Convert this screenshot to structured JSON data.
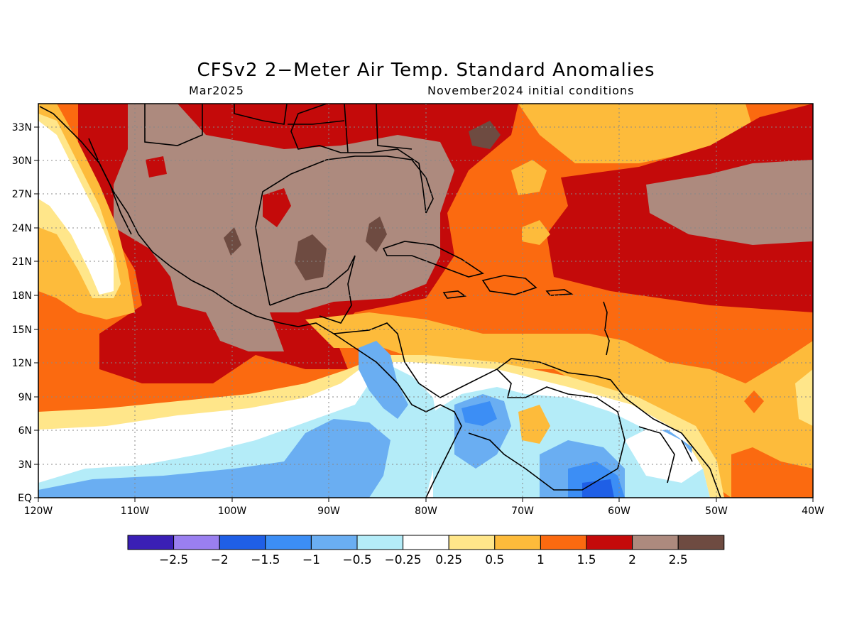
{
  "title": "CFSv2 2−Meter Air Temp. Standard Anomalies",
  "valid_month": "Mar2025",
  "init_conditions": "November2024 initial conditions",
  "lat_labels": [
    "33N",
    "30N",
    "27N",
    "24N",
    "21N",
    "18N",
    "15N",
    "12N",
    "9N",
    "6N",
    "3N",
    "EQ"
  ],
  "lon_labels": [
    "120W",
    "110W",
    "100W",
    "90W",
    "80W",
    "70W",
    "60W",
    "50W",
    "40W"
  ],
  "legend": {
    "colors": [
      "#3a1fb5",
      "#9a7ff0",
      "#1f5fe6",
      "#3c8ef5",
      "#6aaef2",
      "#b4ecf8",
      "#ffffff",
      "#ffe68a",
      "#fdbb3b",
      "#fb6a10",
      "#c40a0a",
      "#ad8a7e",
      "#6e4b41"
    ],
    "labels": [
      "−2.5",
      "−2",
      "−1.5",
      "−1",
      "−0.5",
      "−0.25",
      "0.25",
      "0.5",
      "1",
      "1.5",
      "2",
      "2.5"
    ]
  }
}
